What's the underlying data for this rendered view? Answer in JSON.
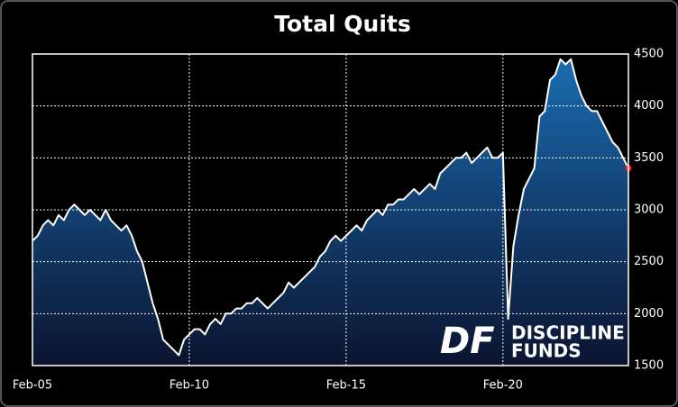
{
  "chart_data": {
    "type": "area",
    "title": "Total Quits",
    "categories": [
      "Feb-05",
      null,
      null,
      null,
      null,
      null,
      null,
      null,
      null,
      null,
      null,
      null,
      null,
      null,
      null,
      null,
      null,
      null,
      null,
      null,
      null,
      null,
      null,
      null,
      null,
      null,
      null,
      null,
      null,
      null,
      "Feb-10",
      null,
      null,
      null,
      null,
      null,
      null,
      null,
      null,
      null,
      null,
      null,
      null,
      null,
      null,
      null,
      null,
      null,
      null,
      null,
      null,
      null,
      null,
      null,
      null,
      null,
      null,
      null,
      null,
      null,
      "Feb-15",
      null,
      null,
      null,
      null,
      null,
      null,
      null,
      null,
      null,
      null,
      null,
      null,
      null,
      null,
      null,
      null,
      null,
      null,
      null,
      null,
      null,
      null,
      null,
      null,
      null,
      null,
      null,
      null,
      null,
      "Feb-20",
      null,
      null,
      null,
      null,
      null,
      null,
      null,
      null,
      null,
      null,
      null,
      null,
      null,
      null,
      null,
      null,
      null,
      null,
      null,
      null,
      null,
      null,
      null,
      null
    ],
    "values": [
      2700,
      2750,
      2850,
      2900,
      2850,
      2950,
      2900,
      3000,
      3050,
      3000,
      2950,
      3000,
      2950,
      2900,
      3000,
      2900,
      2850,
      2800,
      2850,
      2750,
      2600,
      2500,
      2300,
      2100,
      1950,
      1750,
      1700,
      1650,
      1600,
      1750,
      1800,
      1850,
      1850,
      1800,
      1900,
      1950,
      1900,
      2000,
      2000,
      2050,
      2050,
      2100,
      2100,
      2150,
      2100,
      2050,
      2100,
      2150,
      2200,
      2300,
      2250,
      2300,
      2350,
      2400,
      2450,
      2550,
      2600,
      2700,
      2750,
      2700,
      2750,
      2800,
      2850,
      2800,
      2900,
      2950,
      3000,
      2950,
      3050,
      3050,
      3100,
      3100,
      3150,
      3200,
      3150,
      3200,
      3250,
      3200,
      3350,
      3400,
      3450,
      3500,
      3500,
      3550,
      3450,
      3500,
      3550,
      3600,
      3500,
      3500,
      3550,
      1950,
      2650,
      2950,
      3200,
      3300,
      3400,
      3900,
      3950,
      4250,
      4300,
      4450,
      4400,
      4450,
      4250,
      4100,
      4000,
      3950,
      3950,
      3850,
      3750,
      3650,
      3600,
      3500,
      3400
    ],
    "line_color": "#ffffff",
    "fill_top_color": "#1a6bb0",
    "fill_bottom_color": "#0b1430",
    "last_point_color": "#ff1a1a",
    "ylim": [
      1500,
      4500
    ],
    "yticks": [
      1500,
      2000,
      2500,
      3000,
      3500,
      4000,
      4500
    ],
    "grid": true,
    "watermark": {
      "mark": "DF",
      "lines": [
        "DISCIPLINE",
        "FUNDS"
      ]
    }
  }
}
